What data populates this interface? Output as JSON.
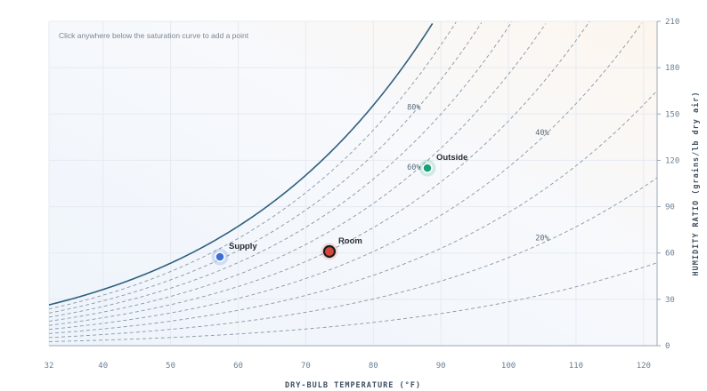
{
  "hint": "Click anywhere below the saturation curve to add a point",
  "chart_data": {
    "type": "scatter",
    "xlabel": "DRY-BULB TEMPERATURE (°F)",
    "ylabel": "HUMIDITY RATIO (grains/lb dry air)",
    "xlim": [
      32,
      122
    ],
    "ylim": [
      0,
      210
    ],
    "xticks": [
      32,
      40,
      50,
      60,
      70,
      80,
      90,
      100,
      110,
      120
    ],
    "yticks": [
      0,
      30,
      60,
      90,
      120,
      150,
      180,
      210
    ],
    "rh_lines": [
      10,
      20,
      30,
      40,
      50,
      60,
      70,
      80,
      90
    ],
    "rh_labels": [
      {
        "rh": 80,
        "text": "80%"
      },
      {
        "rh": 60,
        "text": "60%"
      },
      {
        "rh": 40,
        "text": "40%"
      },
      {
        "rh": 20,
        "text": "20%"
      }
    ],
    "points": [
      {
        "name": "Supply",
        "x": 57.3,
        "y": 57.5,
        "color": "#3b6fd4"
      },
      {
        "name": "Room",
        "x": 73.5,
        "y": 61,
        "color": "#d6463c"
      },
      {
        "name": "Outside",
        "x": 88,
        "y": 115,
        "color": "#1f9e7a"
      }
    ]
  }
}
